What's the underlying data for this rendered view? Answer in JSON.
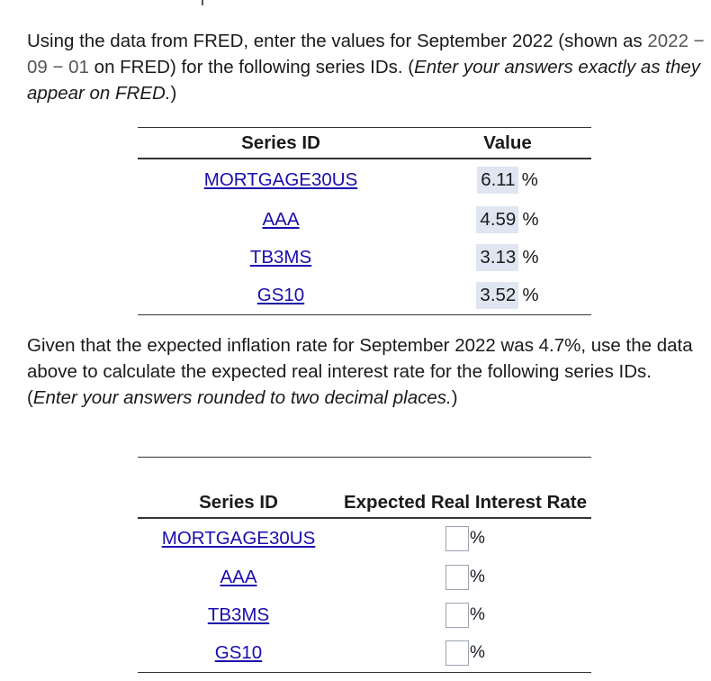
{
  "intro": {
    "part1": "Using the data from FRED, enter the values for September 2022 (shown as ",
    "date_code": "2022 − 09 − 01",
    "part2": " on FRED) for the following series IDs. (",
    "instruction": "Enter your answers exactly as they appear on FRED.",
    "part3": ")"
  },
  "table1": {
    "headers": [
      "Series ID",
      "Value"
    ],
    "rows": [
      {
        "series": "MORTGAGE30US",
        "value": "6.11",
        "unit": "%"
      },
      {
        "series": "AAA",
        "value": "4.59",
        "unit": "%"
      },
      {
        "series": "TB3MS",
        "value": "3.13",
        "unit": "%"
      },
      {
        "series": "GS10",
        "value": "3.52",
        "unit": "%"
      }
    ]
  },
  "prompt2": {
    "part1": "Given that the expected inflation rate for September 2022 was 4.7%, use the data above to calculate the expected real interest rate for the following series IDs. (",
    "instruction": "Enter your answers rounded to two decimal places.",
    "part2": ")"
  },
  "table2": {
    "headers": [
      "Series ID",
      "Expected Real Interest Rate"
    ],
    "rows": [
      {
        "series": "MORTGAGE30US",
        "unit": "%"
      },
      {
        "series": "AAA",
        "unit": "%"
      },
      {
        "series": "TB3MS",
        "unit": "%"
      },
      {
        "series": "GS10",
        "unit": "%"
      }
    ]
  }
}
